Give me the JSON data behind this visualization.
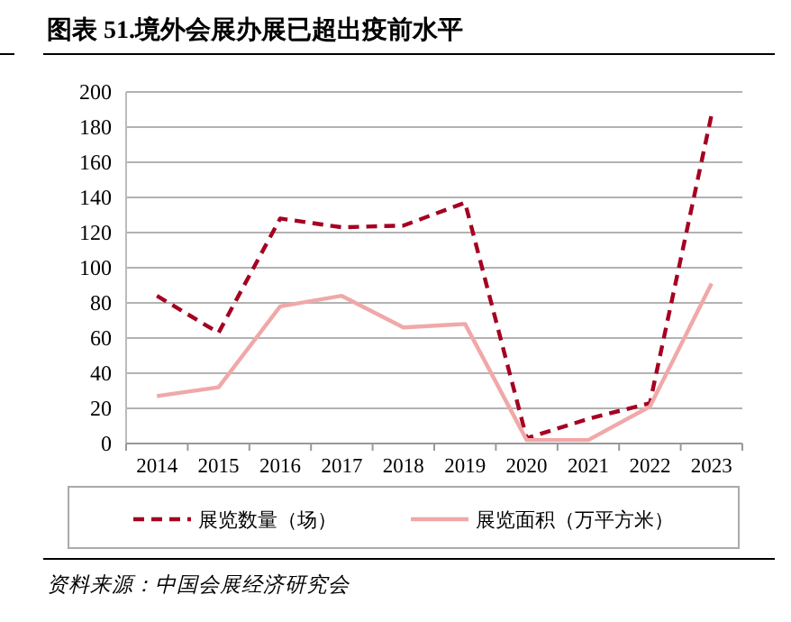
{
  "chart_data": {
    "type": "line",
    "title": "图表 51.境外会展办展已超出疫前水平",
    "categories": [
      "2014",
      "2015",
      "2016",
      "2017",
      "2018",
      "2019",
      "2020",
      "2021",
      "2022",
      "2023"
    ],
    "series": [
      {
        "name": "展览数量（场）",
        "color": "#a50021",
        "line_style": "dashed",
        "values": [
          84,
          63,
          128,
          123,
          124,
          137,
          3,
          14,
          23,
          187
        ]
      },
      {
        "name": "展览面积（万平方米）",
        "color": "#f0a8a8",
        "line_style": "solid",
        "values": [
          27,
          32,
          78,
          84,
          66,
          68,
          2,
          2,
          21,
          91
        ]
      }
    ],
    "ylim": [
      0,
      200
    ],
    "yticks": [
      0,
      20,
      40,
      60,
      80,
      100,
      120,
      140,
      160,
      180,
      200
    ],
    "grid": "y",
    "legend": "bottom",
    "annotations": [
      "资料来源：中国会展经济研究会"
    ]
  }
}
